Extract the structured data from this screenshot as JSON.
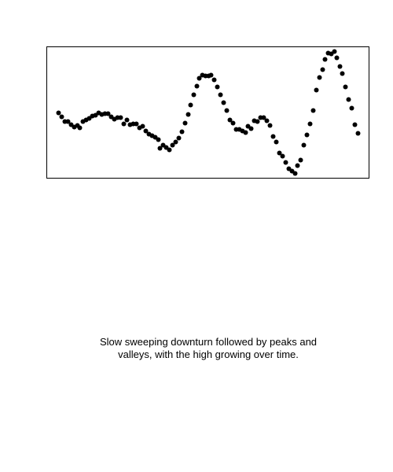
{
  "chart_data": {
    "type": "scatter",
    "caption": "Slow sweeping downturn followed by peaks and valleys, with the high growing over time.",
    "color": "#000000",
    "xlim": [
      0,
      410
    ],
    "ylim": [
      0,
      167
    ],
    "x": [
      15,
      19,
      23,
      27,
      31,
      35,
      39,
      42,
      46,
      50,
      54,
      58,
      62,
      66,
      70,
      74,
      78,
      82,
      86,
      90,
      94,
      98,
      102,
      106,
      110,
      114,
      118,
      122,
      126,
      130,
      134,
      138,
      142,
      144,
      148,
      152,
      156,
      160,
      164,
      168,
      172,
      176,
      180,
      183,
      187,
      191,
      194,
      198,
      202,
      206,
      209,
      213,
      217,
      221,
      225,
      229,
      233,
      237,
      241,
      245,
      249,
      253,
      256,
      260,
      264,
      268,
      272,
      276,
      280,
      284,
      288,
      292,
      296,
      300,
      304,
      308,
      312,
      316,
      319,
      323,
      327,
      331,
      335,
      339,
      343,
      347,
      351,
      354,
      358,
      362,
      366,
      369,
      373,
      376,
      380,
      384,
      388,
      392,
      396
    ],
    "values": [
      83,
      78,
      72,
      72,
      68,
      65,
      67,
      64,
      72,
      74,
      76,
      79,
      80,
      83,
      81,
      82,
      82,
      78,
      75,
      77,
      77,
      69,
      74,
      68,
      69,
      69,
      64,
      66,
      60,
      56,
      54,
      52,
      49,
      38,
      42,
      39,
      36,
      42,
      46,
      51,
      59,
      70,
      81,
      93,
      106,
      117,
      127,
      131,
      130,
      130,
      131,
      125,
      116,
      106,
      96,
      86,
      74,
      70,
      62,
      62,
      60,
      58,
      66,
      63,
      73,
      72,
      77,
      77,
      73,
      67,
      53,
      46,
      32,
      28,
      20,
      12,
      9,
      6,
      16,
      23,
      42,
      55,
      69,
      86,
      112,
      128,
      138,
      151,
      159,
      158,
      161,
      153,
      142,
      133,
      116,
      100,
      89,
      68,
      57
    ]
  }
}
